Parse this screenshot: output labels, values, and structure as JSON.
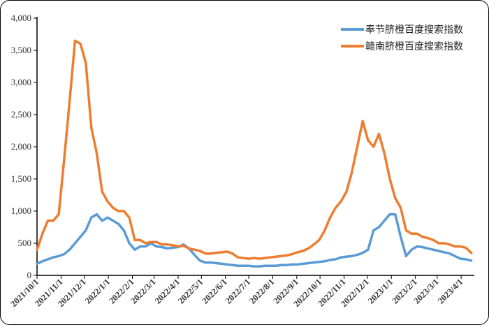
{
  "chart_data": {
    "type": "line",
    "title": "",
    "xlabel": "",
    "ylabel": "",
    "ylim": [
      0,
      4000
    ],
    "xlim": [
      "2021-10-01",
      "2023-04-18"
    ],
    "grid": false,
    "legend_position": "top-right",
    "y_ticks": [
      "0",
      "500",
      "1,000",
      "1,500",
      "2,000",
      "2,500",
      "3,000",
      "3,500",
      "4,000"
    ],
    "x_ticks": [
      "2021/10/1",
      "2021/11/1",
      "2021/12/1",
      "2022/1/1",
      "2022/2/1",
      "2022/3/1",
      "2022/4/1",
      "2022/5/1",
      "2022/6/1",
      "2022/7/1",
      "2022/8/1",
      "2022/9/1",
      "2022/10/1",
      "2022/11/1",
      "2022/12/1",
      "2023/1/1",
      "2023/2/1",
      "2023/3/1",
      "2023/4/1"
    ],
    "x": [
      "2021-10-01",
      "2021-10-08",
      "2021-10-15",
      "2021-10-22",
      "2021-10-29",
      "2021-11-05",
      "2021-11-12",
      "2021-11-19",
      "2021-11-26",
      "2021-12-03",
      "2021-12-10",
      "2021-12-17",
      "2021-12-24",
      "2021-12-31",
      "2022-01-07",
      "2022-01-14",
      "2022-01-21",
      "2022-01-28",
      "2022-02-04",
      "2022-02-11",
      "2022-02-18",
      "2022-02-25",
      "2022-03-04",
      "2022-03-11",
      "2022-03-18",
      "2022-03-25",
      "2022-04-01",
      "2022-04-08",
      "2022-04-15",
      "2022-04-22",
      "2022-04-29",
      "2022-05-06",
      "2022-05-13",
      "2022-05-20",
      "2022-05-27",
      "2022-06-03",
      "2022-06-10",
      "2022-06-17",
      "2022-06-24",
      "2022-07-01",
      "2022-07-08",
      "2022-07-15",
      "2022-07-22",
      "2022-07-29",
      "2022-08-05",
      "2022-08-12",
      "2022-08-19",
      "2022-08-26",
      "2022-09-02",
      "2022-09-09",
      "2022-09-16",
      "2022-09-23",
      "2022-09-30",
      "2022-10-07",
      "2022-10-14",
      "2022-10-21",
      "2022-10-28",
      "2022-11-04",
      "2022-11-11",
      "2022-11-18",
      "2022-11-25",
      "2022-12-02",
      "2022-12-09",
      "2022-12-16",
      "2022-12-23",
      "2022-12-30",
      "2023-01-06",
      "2023-01-13",
      "2023-01-20",
      "2023-01-27",
      "2023-02-03",
      "2023-02-10",
      "2023-02-17",
      "2023-02-24",
      "2023-03-03",
      "2023-03-10",
      "2023-03-17",
      "2023-03-24",
      "2023-03-31",
      "2023-04-07",
      "2023-04-14"
    ],
    "series": [
      {
        "name": "奉节脐橙百度搜索指数",
        "color": "#5B9BD5",
        "values": [
          180,
          220,
          250,
          280,
          300,
          330,
          400,
          500,
          600,
          700,
          900,
          950,
          850,
          900,
          850,
          800,
          700,
          500,
          400,
          450,
          450,
          500,
          450,
          440,
          420,
          430,
          440,
          480,
          420,
          320,
          230,
          200,
          200,
          190,
          180,
          170,
          160,
          150,
          150,
          150,
          140,
          140,
          150,
          150,
          150,
          160,
          160,
          170,
          170,
          180,
          190,
          200,
          210,
          220,
          240,
          250,
          280,
          290,
          300,
          320,
          350,
          400,
          700,
          750,
          850,
          950,
          950,
          600,
          300,
          400,
          450,
          440,
          420,
          400,
          380,
          360,
          340,
          300,
          260,
          250,
          230
        ]
      },
      {
        "name": "赣南脐橙百度搜索指数",
        "color": "#ED7D31",
        "values": [
          400,
          650,
          850,
          850,
          950,
          1800,
          2700,
          3650,
          3600,
          3300,
          2300,
          1900,
          1300,
          1150,
          1050,
          1000,
          1000,
          900,
          550,
          550,
          500,
          520,
          520,
          480,
          480,
          470,
          450,
          460,
          420,
          400,
          380,
          340,
          340,
          350,
          360,
          370,
          340,
          280,
          270,
          260,
          270,
          260,
          270,
          280,
          290,
          300,
          310,
          330,
          360,
          380,
          420,
          480,
          550,
          700,
          900,
          1050,
          1150,
          1300,
          1600,
          2000,
          2400,
          2100,
          2000,
          2200,
          1900,
          1500,
          1200,
          1050,
          700,
          650,
          650,
          600,
          580,
          550,
          500,
          500,
          480,
          450,
          450,
          430,
          350
        ]
      }
    ]
  }
}
